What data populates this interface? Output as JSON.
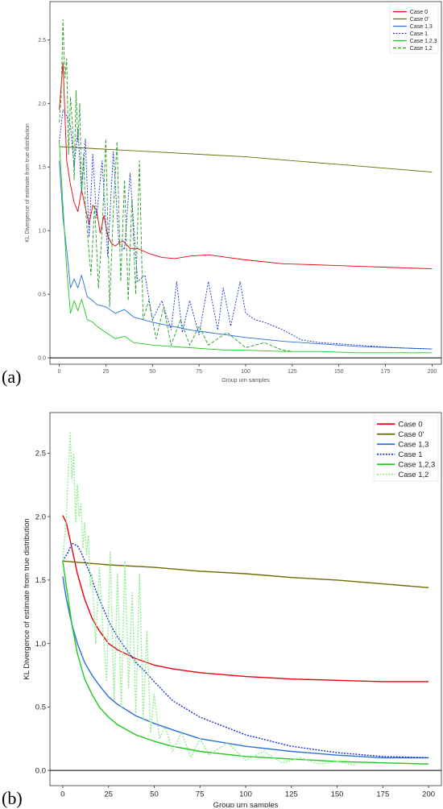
{
  "panel_labels": [
    "(a)",
    "(b)"
  ],
  "colors": {
    "case0": "#e8000b",
    "case0p": "#6b6b00",
    "case13": "#2a6fdb",
    "case1": "#1a2ecc",
    "case123": "#1ec81e",
    "case12_a": "#1f9e1f",
    "case12_b": "#90ee90"
  },
  "chart_data": [
    {
      "type": "line",
      "panel": "(a)",
      "xlabel": "Group urn samples",
      "ylabel": "KL Divergence of estimate from true distribution",
      "xlim": [
        -5,
        205
      ],
      "ylim": [
        -0.05,
        2.8
      ],
      "xticks": [
        0,
        25,
        50,
        75,
        100,
        125,
        150,
        175,
        200
      ],
      "yticks": [
        0.0,
        0.5,
        1.0,
        1.5,
        2.0,
        2.5
      ],
      "xtick_labels": [
        "0",
        "25",
        "50",
        "75",
        "100",
        "125",
        "150",
        "175",
        "200"
      ],
      "ytick_labels": [
        "0.0",
        "0.5",
        "1.0",
        "1.5",
        "2.0",
        "2.5"
      ],
      "hline": 0.0,
      "legend_position": "top-right",
      "legend": [
        "Case 0",
        "Case 0'",
        "Case 1,3",
        "Case 1",
        "Case 1,2,3",
        "Case 1,2"
      ],
      "series": [
        {
          "name": "Case 0",
          "color": "#e8000b",
          "style": "solid",
          "x": [
            0,
            2,
            4,
            6,
            8,
            10,
            12,
            14,
            16,
            18,
            20,
            22,
            24,
            26,
            28,
            30,
            34,
            38,
            42,
            48,
            55,
            62,
            70,
            80,
            90,
            100,
            120,
            140,
            160,
            180,
            200
          ],
          "y": [
            1.95,
            2.32,
            1.55,
            1.36,
            1.22,
            1.15,
            1.32,
            1.18,
            1.05,
            1.2,
            1.16,
            0.98,
            1.12,
            0.96,
            0.9,
            0.88,
            0.92,
            0.86,
            0.86,
            0.82,
            0.79,
            0.78,
            0.8,
            0.81,
            0.79,
            0.77,
            0.74,
            0.73,
            0.72,
            0.71,
            0.7
          ]
        },
        {
          "name": "Case 0'",
          "color": "#6b6b00",
          "style": "solid",
          "x": [
            0,
            25,
            50,
            75,
            100,
            125,
            150,
            175,
            200
          ],
          "y": [
            1.66,
            1.64,
            1.62,
            1.6,
            1.58,
            1.55,
            1.52,
            1.49,
            1.46
          ]
        },
        {
          "name": "Case 1,3",
          "color": "#2a6fdb",
          "style": "solid",
          "x": [
            0,
            2,
            4,
            6,
            8,
            10,
            12,
            15,
            18,
            20,
            25,
            30,
            35,
            40,
            45,
            50,
            60,
            70,
            80,
            90,
            100,
            120,
            140,
            160,
            180,
            200
          ],
          "y": [
            1.55,
            1.1,
            0.85,
            0.55,
            0.62,
            0.55,
            0.65,
            0.48,
            0.45,
            0.42,
            0.4,
            0.35,
            0.38,
            0.32,
            0.3,
            0.28,
            0.25,
            0.22,
            0.2,
            0.18,
            0.16,
            0.13,
            0.11,
            0.09,
            0.08,
            0.07
          ]
        },
        {
          "name": "Case 1",
          "color": "#1a2ecc",
          "style": "dotted",
          "x": [
            0,
            2,
            4,
            6,
            8,
            10,
            12,
            14,
            16,
            18,
            20,
            23,
            26,
            29,
            32,
            35,
            38,
            42,
            46,
            50,
            55,
            60,
            63,
            66,
            70,
            75,
            80,
            85,
            88,
            92,
            97,
            100,
            105,
            110,
            115,
            120,
            130,
            140,
            160,
            180,
            200
          ],
          "y": [
            1.7,
            1.95,
            1.9,
            1.82,
            1.5,
            1.8,
            1.3,
            1.72,
            0.95,
            1.6,
            1.1,
            1.55,
            0.8,
            1.62,
            0.9,
            0.85,
            1.45,
            0.6,
            0.65,
            0.3,
            0.45,
            0.22,
            0.6,
            0.2,
            0.45,
            0.18,
            0.6,
            0.22,
            0.55,
            0.25,
            0.6,
            0.35,
            0.3,
            0.28,
            0.25,
            0.22,
            0.14,
            0.12,
            0.1,
            0.08,
            0.07
          ]
        },
        {
          "name": "Case 1,2,3",
          "color": "#1ec81e",
          "style": "solid",
          "x": [
            0,
            2,
            4,
            6,
            8,
            10,
            12,
            15,
            18,
            20,
            25,
            30,
            35,
            40,
            45,
            50,
            60,
            70,
            80,
            90,
            100,
            120,
            140,
            160,
            180,
            200
          ],
          "y": [
            1.7,
            1.2,
            0.7,
            0.35,
            0.45,
            0.37,
            0.46,
            0.3,
            0.28,
            0.25,
            0.2,
            0.15,
            0.17,
            0.12,
            0.11,
            0.1,
            0.09,
            0.08,
            0.07,
            0.06,
            0.06,
            0.05,
            0.05,
            0.04,
            0.04,
            0.04
          ]
        },
        {
          "name": "Case 1,2",
          "color": "#1f9e1f",
          "style": "dashed",
          "x": [
            0,
            1,
            2,
            3,
            4,
            5,
            6,
            7,
            8,
            9,
            10,
            11,
            12,
            13,
            14,
            15,
            17,
            19,
            21,
            23,
            25,
            27,
            29,
            31,
            33,
            35,
            37,
            39,
            41,
            43,
            45,
            48,
            52,
            56,
            60,
            65,
            70,
            75,
            80,
            90,
            100,
            110,
            120,
            125
          ],
          "y": [
            1.85,
            2.05,
            2.66,
            2.2,
            2.35,
            1.6,
            2.05,
            1.85,
            1.4,
            2.1,
            1.7,
            2.0,
            1.3,
            1.6,
            1.2,
            1.0,
            0.65,
            1.2,
            0.55,
            1.0,
            1.72,
            0.4,
            1.15,
            1.7,
            0.6,
            1.4,
            0.45,
            1.25,
            0.5,
            1.55,
            0.3,
            0.45,
            0.15,
            0.4,
            0.1,
            0.3,
            0.1,
            0.25,
            0.1,
            0.2,
            0.08,
            0.12,
            0.06,
            0.05
          ]
        }
      ]
    },
    {
      "type": "line",
      "panel": "(b)",
      "xlabel": "Group urn samples",
      "ylabel": "KL Divergence of estimate from true distribution",
      "xlim": [
        -7,
        207
      ],
      "ylim": [
        -0.12,
        2.82
      ],
      "xticks": [
        0,
        25,
        50,
        75,
        100,
        125,
        150,
        175,
        200
      ],
      "yticks": [
        0.0,
        0.5,
        1.0,
        1.5,
        2.0,
        2.5
      ],
      "xtick_labels": [
        "0",
        "25",
        "50",
        "75",
        "100",
        "125",
        "150",
        "175",
        "200"
      ],
      "ytick_labels": [
        "0.0",
        "0.5",
        "1.0",
        "1.5",
        "2.0",
        "2.5"
      ],
      "hline": 0.0,
      "legend_position": "top-right",
      "legend": [
        "Case 0",
        "Case 0'",
        "Case 1,3",
        "Case 1",
        "Case 1,2,3",
        "Case 1,2"
      ],
      "series": [
        {
          "name": "Case 0",
          "color": "#e8000b",
          "style": "solid",
          "x": [
            0,
            2,
            5,
            8,
            12,
            16,
            20,
            25,
            30,
            40,
            50,
            60,
            75,
            100,
            125,
            150,
            175,
            200
          ],
          "y": [
            2.01,
            1.95,
            1.75,
            1.55,
            1.35,
            1.2,
            1.1,
            1.0,
            0.95,
            0.88,
            0.83,
            0.8,
            0.77,
            0.74,
            0.72,
            0.71,
            0.7,
            0.7
          ]
        },
        {
          "name": "Case 0'",
          "color": "#6b6b00",
          "style": "solid",
          "x": [
            0,
            25,
            50,
            75,
            100,
            125,
            150,
            175,
            200
          ],
          "y": [
            1.65,
            1.62,
            1.6,
            1.57,
            1.55,
            1.52,
            1.5,
            1.47,
            1.44
          ]
        },
        {
          "name": "Case 1,3",
          "color": "#2a6fdb",
          "style": "solid",
          "x": [
            0,
            2,
            5,
            8,
            12,
            16,
            20,
            25,
            30,
            40,
            50,
            60,
            75,
            100,
            125,
            150,
            175,
            200
          ],
          "y": [
            1.53,
            1.35,
            1.15,
            1.0,
            0.85,
            0.75,
            0.67,
            0.58,
            0.52,
            0.43,
            0.37,
            0.32,
            0.25,
            0.19,
            0.15,
            0.12,
            0.1,
            0.1
          ]
        },
        {
          "name": "Case 1",
          "color": "#1a2ecc",
          "style": "dotted",
          "x": [
            0,
            3,
            5,
            8,
            10,
            12,
            15,
            18,
            22,
            26,
            30,
            35,
            40,
            45,
            50,
            60,
            75,
            100,
            125,
            150,
            175,
            200
          ],
          "y": [
            1.65,
            1.72,
            1.79,
            1.77,
            1.72,
            1.65,
            1.55,
            1.42,
            1.28,
            1.15,
            1.05,
            0.95,
            0.85,
            0.78,
            0.7,
            0.55,
            0.42,
            0.28,
            0.19,
            0.14,
            0.11,
            0.1
          ]
        },
        {
          "name": "Case 1,2,3",
          "color": "#1ec81e",
          "style": "solid",
          "x": [
            0,
            2,
            5,
            8,
            12,
            16,
            20,
            25,
            30,
            40,
            50,
            60,
            75,
            100,
            125,
            150,
            175,
            200
          ],
          "y": [
            1.65,
            1.45,
            1.15,
            0.92,
            0.72,
            0.6,
            0.5,
            0.42,
            0.36,
            0.28,
            0.23,
            0.19,
            0.15,
            0.11,
            0.09,
            0.07,
            0.06,
            0.05
          ]
        },
        {
          "name": "Case 1,2",
          "color": "#90ee90",
          "style": "dotted",
          "x": [
            0,
            2,
            3,
            4,
            5,
            6,
            7,
            8,
            9,
            10,
            11,
            12,
            13,
            14,
            15,
            16,
            18,
            20,
            22,
            24,
            26,
            28,
            30,
            32,
            34,
            36,
            38,
            40,
            42,
            44,
            46,
            48,
            50,
            53,
            56,
            60,
            65,
            70,
            75,
            80,
            90,
            100,
            110,
            120,
            130,
            140,
            150,
            160
          ],
          "y": [
            1.65,
            2.0,
            2.35,
            2.66,
            2.3,
            2.5,
            1.95,
            2.25,
            2.0,
            2.1,
            1.75,
            1.95,
            1.7,
            1.85,
            1.45,
            1.55,
            1.0,
            1.6,
            1.1,
            0.7,
            1.72,
            0.55,
            1.55,
            0.5,
            1.65,
            0.65,
            1.4,
            0.45,
            1.55,
            0.4,
            1.1,
            0.3,
            0.6,
            0.25,
            0.35,
            0.15,
            0.3,
            0.1,
            0.25,
            0.12,
            0.22,
            0.08,
            0.15,
            0.06,
            0.1,
            0.05,
            0.07,
            0.04
          ]
        }
      ]
    }
  ]
}
